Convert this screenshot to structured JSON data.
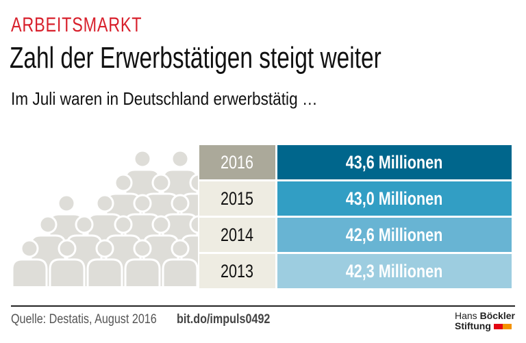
{
  "header": {
    "kicker": "ARBEITSMARKT",
    "title": "Zahl der Erwerbstätigen steigt weiter",
    "subtitle": "Im Juli waren in Deutschland erwerbstätig …"
  },
  "chart_data": {
    "type": "table",
    "rows": [
      {
        "year": "2016",
        "value": "43,6 Millionen",
        "amount": 43.6,
        "year_bg": "#aba99a",
        "year_color": "#ffffff",
        "value_bg": "#00668c"
      },
      {
        "year": "2015",
        "value": "43,0 Millionen",
        "amount": 43.0,
        "year_bg": "#eeece2",
        "year_color": "#111111",
        "value_bg": "#329ec4"
      },
      {
        "year": "2014",
        "value": "42,6 Millionen",
        "amount": 42.6,
        "year_bg": "#eeece2",
        "year_color": "#111111",
        "value_bg": "#68b4d3"
      },
      {
        "year": "2013",
        "value": "42,3 Millionen",
        "amount": 42.3,
        "year_bg": "#eeece2",
        "year_color": "#111111",
        "value_bg": "#9dcde0"
      }
    ]
  },
  "footer": {
    "source": "Quelle: Destatis, August 2016",
    "link": "bit.do/impuls0492"
  },
  "logo": {
    "line1_light": "Hans",
    "line1_bold": "Böckler",
    "line2": "Stiftung",
    "colors": [
      "#e30613",
      "#f39200"
    ]
  },
  "colors": {
    "accent": "#d8202c",
    "people": "#deddd8"
  }
}
